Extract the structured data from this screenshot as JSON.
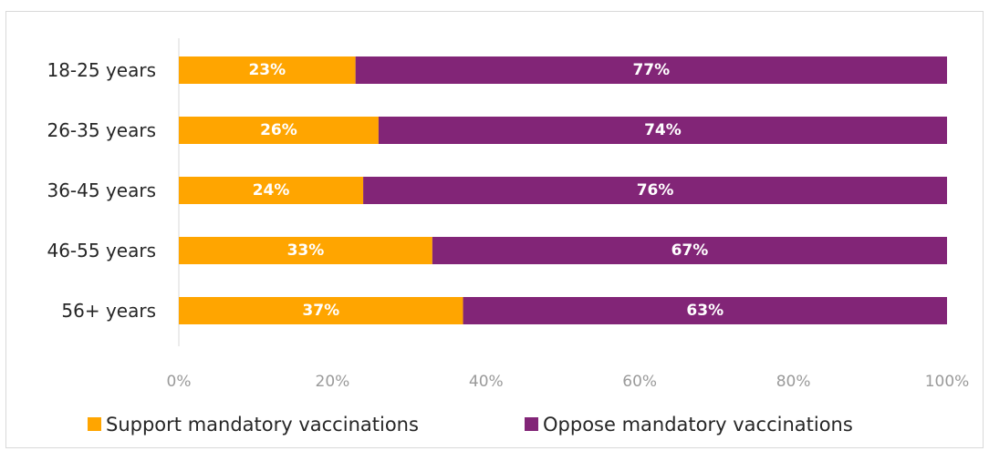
{
  "chart_data": {
    "type": "bar",
    "orientation": "horizontal",
    "stacked": true,
    "categories": [
      "18-25 years",
      "26-35 years",
      "36-45 years",
      "46-55 years",
      "56+ years"
    ],
    "series": [
      {
        "name": "Support mandatory vaccinations",
        "values": [
          23,
          26,
          24,
          33,
          37
        ],
        "labels": [
          "23%",
          "26%",
          "24%",
          "33%",
          "37%"
        ],
        "color": "#FFA500"
      },
      {
        "name": "Oppose mandatory vaccinations",
        "values": [
          77,
          74,
          76,
          67,
          63
        ],
        "labels": [
          "77%",
          "74%",
          "76%",
          "67%",
          "63%"
        ],
        "color": "#822577"
      }
    ],
    "xlim": [
      0,
      100
    ],
    "xticks": [
      0,
      20,
      40,
      60,
      80,
      100
    ],
    "xtick_labels": [
      "0%",
      "20%",
      "40%",
      "60%",
      "80%",
      "100%"
    ],
    "title": "",
    "xlabel": "",
    "ylabel": "",
    "grid": false,
    "legend_position": "bottom"
  }
}
